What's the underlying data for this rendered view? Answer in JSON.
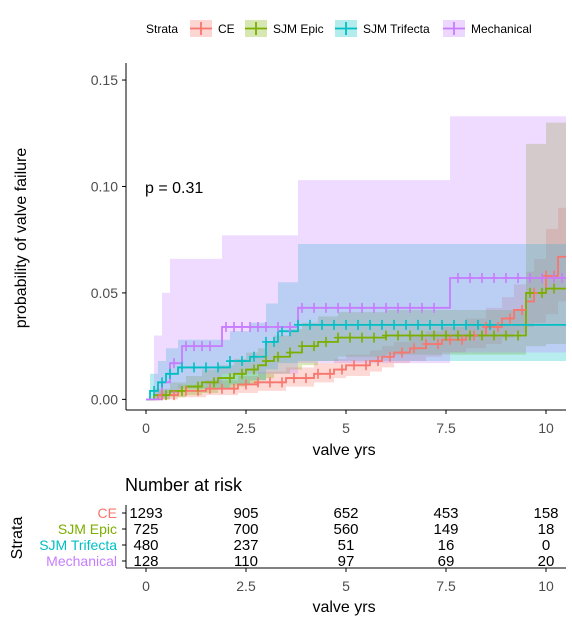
{
  "legend": {
    "title": "Strata",
    "items": [
      "CE",
      "SJM Epic",
      "SJM Trifecta",
      "Mechanical"
    ]
  },
  "chart_data": [
    {
      "type": "line",
      "subtype": "kaplan-meier cumulative incidence (step) with confidence bands and censor marks",
      "annotation": "p = 0.31",
      "xlabel": "valve yrs",
      "ylabel": "probability of valve failure",
      "xlim": [
        -0.5,
        10.5
      ],
      "ylim": [
        -0.005,
        0.158
      ],
      "xticks": [
        0,
        2.5,
        5,
        7.5,
        10
      ],
      "xtick_labels": [
        "0",
        "2.5",
        "5",
        "7.5",
        "10"
      ],
      "yticks": [
        0,
        0.05,
        0.1,
        0.15
      ],
      "ytick_labels": [
        "0.00",
        "0.05",
        "0.10",
        "0.15"
      ],
      "grid": false,
      "legend_position": "top",
      "colors": {
        "CE": "#F8766D",
        "SJM Epic": "#7CAE00",
        "SJM Trifecta": "#00BFC4",
        "Mechanical": "#C77CFF"
      },
      "series": [
        {
          "name": "CE",
          "color": "#F8766D",
          "steps": [
            [
              0,
              0
            ],
            [
              0.3,
              0.002
            ],
            [
              0.8,
              0.004
            ],
            [
              1.5,
              0.005
            ],
            [
              2.3,
              0.007
            ],
            [
              2.8,
              0.008
            ],
            [
              3.5,
              0.01
            ],
            [
              4.2,
              0.012
            ],
            [
              4.7,
              0.014
            ],
            [
              5.0,
              0.016
            ],
            [
              5.6,
              0.018
            ],
            [
              5.9,
              0.02
            ],
            [
              6.2,
              0.022
            ],
            [
              6.6,
              0.024
            ],
            [
              7.0,
              0.026
            ],
            [
              7.4,
              0.028
            ],
            [
              8.0,
              0.03
            ],
            [
              8.5,
              0.034
            ],
            [
              8.9,
              0.038
            ],
            [
              9.2,
              0.042
            ],
            [
              9.5,
              0.046
            ],
            [
              9.7,
              0.05
            ],
            [
              10.0,
              0.058
            ],
            [
              10.3,
              0.067
            ]
          ],
          "ci_upper": [
            [
              0,
              0
            ],
            [
              0.3,
              0.004
            ],
            [
              0.8,
              0.007
            ],
            [
              1.5,
              0.009
            ],
            [
              2.3,
              0.011
            ],
            [
              2.8,
              0.013
            ],
            [
              3.5,
              0.015
            ],
            [
              4.2,
              0.017
            ],
            [
              4.7,
              0.019
            ],
            [
              5.0,
              0.021
            ],
            [
              5.6,
              0.023
            ],
            [
              5.9,
              0.025
            ],
            [
              6.2,
              0.027
            ],
            [
              6.6,
              0.03
            ],
            [
              7.0,
              0.032
            ],
            [
              7.4,
              0.034
            ],
            [
              8.0,
              0.038
            ],
            [
              8.5,
              0.043
            ],
            [
              8.9,
              0.048
            ],
            [
              9.2,
              0.054
            ],
            [
              9.5,
              0.06
            ],
            [
              9.7,
              0.066
            ],
            [
              10.0,
              0.08
            ],
            [
              10.3,
              0.09
            ]
          ],
          "ci_lower": [
            [
              0,
              0
            ],
            [
              0.3,
              0.0
            ],
            [
              0.8,
              0.001
            ],
            [
              1.5,
              0.002
            ],
            [
              2.3,
              0.003
            ],
            [
              2.8,
              0.004
            ],
            [
              3.5,
              0.006
            ],
            [
              4.2,
              0.008
            ],
            [
              4.7,
              0.01
            ],
            [
              5.0,
              0.011
            ],
            [
              5.6,
              0.013
            ],
            [
              5.9,
              0.015
            ],
            [
              6.2,
              0.017
            ],
            [
              6.6,
              0.018
            ],
            [
              7.0,
              0.02
            ],
            [
              7.4,
              0.022
            ],
            [
              8.0,
              0.024
            ],
            [
              8.5,
              0.026
            ],
            [
              8.9,
              0.029
            ],
            [
              9.2,
              0.031
            ],
            [
              9.5,
              0.034
            ],
            [
              9.7,
              0.036
            ],
            [
              10.0,
              0.04
            ],
            [
              10.3,
              0.046
            ]
          ],
          "censor_x": [
            0.4,
            0.7,
            1.0,
            1.3,
            1.6,
            1.9,
            2.2,
            2.5,
            2.8,
            3.1,
            3.4,
            3.7,
            4.0,
            4.3,
            4.6,
            4.9,
            5.2,
            5.5,
            5.8,
            6.1,
            6.4,
            6.7,
            7.0,
            7.3,
            7.6,
            7.9,
            8.2,
            8.5,
            8.8,
            9.1,
            9.4,
            9.7,
            10.0,
            10.2
          ]
        },
        {
          "name": "SJM Epic",
          "color": "#7CAE00",
          "steps": [
            [
              0,
              0
            ],
            [
              0.2,
              0.002
            ],
            [
              0.6,
              0.004
            ],
            [
              1.0,
              0.006
            ],
            [
              1.4,
              0.008
            ],
            [
              1.8,
              0.01
            ],
            [
              2.2,
              0.012
            ],
            [
              2.5,
              0.014
            ],
            [
              2.8,
              0.016
            ],
            [
              3.0,
              0.018
            ],
            [
              3.2,
              0.02
            ],
            [
              3.6,
              0.022
            ],
            [
              3.9,
              0.025
            ],
            [
              4.3,
              0.027
            ],
            [
              4.8,
              0.029
            ],
            [
              6.0,
              0.03
            ],
            [
              9.5,
              0.05
            ],
            [
              10.0,
              0.052
            ]
          ],
          "ci_upper": [
            [
              0,
              0
            ],
            [
              0.2,
              0.005
            ],
            [
              0.6,
              0.008
            ],
            [
              1.0,
              0.011
            ],
            [
              1.4,
              0.014
            ],
            [
              1.8,
              0.016
            ],
            [
              2.2,
              0.019
            ],
            [
              2.5,
              0.022
            ],
            [
              2.8,
              0.024
            ],
            [
              3.0,
              0.027
            ],
            [
              3.2,
              0.03
            ],
            [
              3.6,
              0.033
            ],
            [
              3.9,
              0.036
            ],
            [
              4.3,
              0.039
            ],
            [
              4.8,
              0.041
            ],
            [
              6.0,
              0.042
            ],
            [
              9.5,
              0.12
            ],
            [
              10.0,
              0.13
            ]
          ],
          "ci_lower": [
            [
              0,
              0
            ],
            [
              0.2,
              0.0
            ],
            [
              0.6,
              0.001
            ],
            [
              1.0,
              0.002
            ],
            [
              1.4,
              0.003
            ],
            [
              1.8,
              0.005
            ],
            [
              2.2,
              0.006
            ],
            [
              2.5,
              0.007
            ],
            [
              2.8,
              0.009
            ],
            [
              3.0,
              0.01
            ],
            [
              3.2,
              0.012
            ],
            [
              3.6,
              0.014
            ],
            [
              3.9,
              0.016
            ],
            [
              4.3,
              0.018
            ],
            [
              4.8,
              0.02
            ],
            [
              6.0,
              0.021
            ],
            [
              9.5,
              0.025
            ],
            [
              10.0,
              0.026
            ]
          ],
          "censor_x": [
            0.5,
            0.9,
            1.3,
            1.7,
            2.1,
            2.4,
            2.7,
            3.0,
            3.3,
            3.6,
            3.9,
            4.2,
            4.5,
            4.8,
            5.1,
            5.4,
            5.7,
            6.0,
            6.3,
            6.6,
            6.9,
            7.2,
            7.5,
            7.8,
            8.1,
            8.4,
            8.7,
            9.0,
            9.3,
            9.6,
            9.9,
            10.2
          ]
        },
        {
          "name": "SJM Trifecta",
          "color": "#00BFC4",
          "steps": [
            [
              0,
              0
            ],
            [
              0.1,
              0.004
            ],
            [
              0.3,
              0.008
            ],
            [
              0.5,
              0.012
            ],
            [
              0.8,
              0.015
            ],
            [
              2.1,
              0.018
            ],
            [
              2.6,
              0.02
            ],
            [
              3.0,
              0.027
            ],
            [
              3.3,
              0.032
            ],
            [
              3.8,
              0.035
            ],
            [
              8.7,
              0.035
            ]
          ],
          "ci_upper": [
            [
              0,
              0
            ],
            [
              0.1,
              0.012
            ],
            [
              0.3,
              0.018
            ],
            [
              0.5,
              0.024
            ],
            [
              0.8,
              0.028
            ],
            [
              2.1,
              0.032
            ],
            [
              2.6,
              0.036
            ],
            [
              3.0,
              0.045
            ],
            [
              3.3,
              0.055
            ],
            [
              3.8,
              0.073
            ],
            [
              8.7,
              0.073
            ]
          ],
          "ci_lower": [
            [
              0,
              0
            ],
            [
              0.1,
              0.0
            ],
            [
              0.3,
              0.001
            ],
            [
              0.5,
              0.003
            ],
            [
              0.8,
              0.005
            ],
            [
              2.1,
              0.007
            ],
            [
              2.6,
              0.009
            ],
            [
              3.0,
              0.014
            ],
            [
              3.3,
              0.017
            ],
            [
              3.8,
              0.018
            ],
            [
              8.7,
              0.018
            ]
          ],
          "censor_x": [
            0.2,
            0.4,
            0.6,
            0.9,
            1.2,
            1.5,
            1.8,
            2.1,
            2.4,
            2.7,
            3.0,
            3.2,
            3.4,
            3.6,
            3.8,
            4.1,
            4.4,
            4.7,
            5.0,
            5.3,
            5.6,
            5.9,
            6.2,
            6.5,
            6.8,
            7.1,
            7.4,
            7.7,
            8.0,
            8.3,
            8.6
          ]
        },
        {
          "name": "Mechanical",
          "color": "#C77CFF",
          "steps": [
            [
              0,
              0
            ],
            [
              0.4,
              0.008
            ],
            [
              0.6,
              0.017
            ],
            [
              0.9,
              0.025
            ],
            [
              1.9,
              0.034
            ],
            [
              3.8,
              0.043
            ],
            [
              7.6,
              0.057
            ],
            [
              10.5,
              0.057
            ]
          ],
          "ci_upper": [
            [
              0,
              0
            ],
            [
              0.2,
              0.03
            ],
            [
              0.4,
              0.05
            ],
            [
              0.6,
              0.066
            ],
            [
              1.9,
              0.077
            ],
            [
              3.8,
              0.103
            ],
            [
              7.6,
              0.133
            ],
            [
              10.5,
              0.133
            ]
          ],
          "ci_lower": [
            [
              0,
              0
            ],
            [
              0.4,
              0.0
            ],
            [
              0.6,
              0.003
            ],
            [
              0.9,
              0.007
            ],
            [
              1.9,
              0.012
            ],
            [
              3.8,
              0.017
            ],
            [
              7.6,
              0.022
            ],
            [
              10.5,
              0.022
            ]
          ],
          "censor_x": [
            0.7,
            1.0,
            1.2,
            1.4,
            1.6,
            2.0,
            2.2,
            2.4,
            2.6,
            2.8,
            3.0,
            3.3,
            3.6,
            3.9,
            4.2,
            4.5,
            4.8,
            5.1,
            5.4,
            5.7,
            6.0,
            6.3,
            6.6,
            6.9,
            7.2,
            7.8,
            8.1,
            8.4,
            8.7,
            9.0,
            9.3,
            9.6,
            9.9,
            10.2,
            10.4
          ]
        }
      ]
    },
    {
      "type": "table",
      "title": "Number at risk",
      "row_axis_label": "Strata",
      "xlabel": "valve yrs",
      "columns": [
        0,
        2.5,
        5,
        7.5,
        10
      ],
      "column_labels": [
        "0",
        "2.5",
        "5",
        "7.5",
        "10"
      ],
      "rows": [
        {
          "name": "CE",
          "values": [
            1293,
            905,
            652,
            453,
            158
          ]
        },
        {
          "name": "SJM Epic",
          "values": [
            725,
            700,
            560,
            149,
            18
          ]
        },
        {
          "name": "SJM Trifecta",
          "values": [
            480,
            237,
            51,
            16,
            0
          ]
        },
        {
          "name": "Mechanical",
          "values": [
            128,
            110,
            97,
            69,
            20
          ]
        }
      ]
    }
  ]
}
